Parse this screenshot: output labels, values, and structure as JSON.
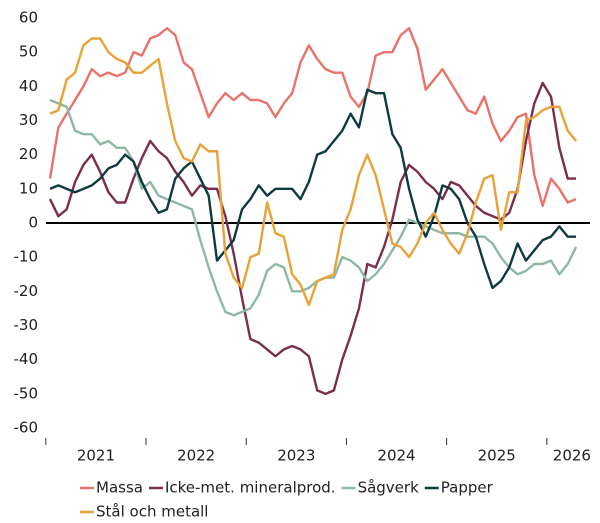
{
  "chart_data": {
    "type": "line",
    "categories": [
      null,
      null,
      null,
      null,
      null,
      null,
      "2021",
      null,
      null,
      null,
      null,
      null,
      null,
      null,
      null,
      null,
      null,
      null,
      "2022",
      null,
      null,
      null,
      null,
      null,
      null,
      null,
      null,
      null,
      null,
      null,
      "2023",
      null,
      null,
      null,
      null,
      null,
      null,
      null,
      null,
      null,
      null,
      null,
      "2024",
      null,
      null,
      null,
      null,
      null,
      null,
      null,
      null,
      null,
      null,
      null,
      "2025",
      null,
      null,
      null,
      null,
      null,
      null,
      null,
      null,
      "2026"
    ],
    "ylim": [
      -60,
      60
    ],
    "yticks": [
      -60,
      -50,
      -40,
      -30,
      -20,
      -10,
      0,
      10,
      20,
      30,
      40,
      50,
      60
    ],
    "series": [
      {
        "name": "Massa",
        "color": "#e8736a",
        "values": [
          13,
          28,
          32,
          36,
          40,
          45,
          43,
          44,
          43,
          44,
          50,
          49,
          54,
          55,
          57,
          55,
          47,
          45,
          38,
          31,
          35,
          38,
          36,
          38,
          36,
          36,
          35,
          31,
          35,
          38,
          47,
          52,
          48,
          45,
          44,
          44,
          37,
          34,
          38,
          49,
          50,
          50,
          55,
          57,
          51,
          39,
          42,
          45,
          41,
          37,
          33,
          32,
          37,
          29,
          24,
          27,
          31,
          32,
          14,
          5,
          13,
          10,
          6,
          7
        ]
      },
      {
        "name": "Icke-met. mineralprod.",
        "color": "#7b2d4e",
        "values": [
          7,
          2,
          4,
          12,
          17,
          20,
          15,
          9,
          6,
          6,
          13,
          19,
          24,
          21,
          19,
          15,
          12,
          8,
          11,
          10,
          10,
          2,
          -9,
          -22,
          -34,
          -35,
          -37,
          -39,
          -37,
          -36,
          -37,
          -39,
          -49,
          -50,
          -49,
          -40,
          -33,
          -25,
          -12,
          -13,
          -7,
          1,
          12,
          17,
          15,
          12,
          10,
          7,
          12,
          11,
          8,
          5,
          3,
          2,
          1,
          3,
          10,
          24,
          35,
          41,
          37,
          22,
          13,
          13
        ]
      },
      {
        "name": "Sågverk",
        "color": "#8fb8a4",
        "values": [
          36,
          35,
          34,
          27,
          26,
          26,
          23,
          24,
          22,
          22,
          18,
          10,
          12,
          8,
          7,
          6,
          5,
          4,
          -5,
          -13,
          -20,
          -26,
          -27,
          -26,
          -25,
          -21,
          -14,
          -12,
          -13,
          -20,
          -20,
          -19,
          -17,
          -16,
          -16,
          -10,
          -11,
          -13,
          -17,
          -15,
          -12,
          -8,
          -4,
          1,
          0,
          -1,
          -2,
          -3,
          -3,
          -3,
          -4,
          -4,
          -4,
          -6,
          -10,
          -13,
          -15,
          -14,
          -12,
          -12,
          -11,
          -15,
          -12,
          -7
        ]
      },
      {
        "name": "Papper",
        "color": "#0e3b40",
        "values": [
          10,
          11,
          10,
          9,
          10,
          11,
          13,
          16,
          17,
          20,
          18,
          12,
          7,
          3,
          4,
          13,
          16,
          18,
          13,
          8,
          -11,
          -8,
          -5,
          4,
          7,
          11,
          8,
          10,
          10,
          10,
          7,
          12,
          20,
          21,
          24,
          27,
          32,
          28,
          39,
          38,
          38,
          26,
          22,
          10,
          1,
          -4,
          2,
          11,
          10,
          7,
          0,
          -4,
          -12,
          -19,
          -17,
          -13,
          -6,
          -11,
          -8,
          -5,
          -4,
          -1,
          -4,
          -4
        ]
      },
      {
        "name": "Stål och metall",
        "color": "#e8a23a",
        "values": [
          32,
          33,
          42,
          44,
          52,
          54,
          54,
          50,
          48,
          47,
          44,
          44,
          46,
          48,
          35,
          24,
          19,
          18,
          23,
          21,
          21,
          -9,
          -16,
          -19,
          -10,
          -9,
          6,
          -3,
          -4,
          -15,
          -18,
          -24,
          -17,
          -16,
          -15,
          -2,
          4,
          14,
          20,
          14,
          4,
          -6,
          -7,
          -10,
          -6,
          0,
          3,
          -2,
          -6,
          -9,
          -3,
          6,
          13,
          14,
          -2,
          9,
          9,
          30,
          31,
          33,
          34,
          34,
          27,
          24
        ]
      }
    ]
  }
}
